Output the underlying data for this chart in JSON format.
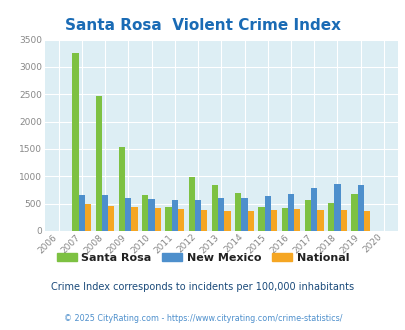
{
  "title": "Santa Rosa  Violent Crime Index",
  "years": [
    2006,
    2007,
    2008,
    2009,
    2010,
    2011,
    2012,
    2013,
    2014,
    2015,
    2016,
    2017,
    2018,
    2019,
    2020
  ],
  "santa_rosa": [
    0,
    3250,
    2460,
    1530,
    660,
    440,
    980,
    840,
    700,
    440,
    420,
    565,
    520,
    680,
    0
  ],
  "new_mexico": [
    0,
    650,
    650,
    600,
    590,
    565,
    575,
    600,
    600,
    640,
    680,
    790,
    860,
    840,
    0
  ],
  "national": [
    0,
    490,
    460,
    440,
    420,
    395,
    385,
    370,
    365,
    380,
    395,
    385,
    375,
    370,
    0
  ],
  "colors": {
    "santa_rosa": "#7dc142",
    "new_mexico": "#4d8fcc",
    "national": "#f5a623"
  },
  "bg_color": "#ddeef4",
  "ylim": [
    0,
    3500
  ],
  "yticks": [
    0,
    500,
    1000,
    1500,
    2000,
    2500,
    3000,
    3500
  ],
  "title_color": "#1a6bb5",
  "subtitle": "Crime Index corresponds to incidents per 100,000 inhabitants",
  "footer": "© 2025 CityRating.com - https://www.cityrating.com/crime-statistics/",
  "subtitle_color": "#1a4a7a",
  "footer_color": "#4d8fcc",
  "legend_color": "#222222",
  "bar_width": 0.27
}
